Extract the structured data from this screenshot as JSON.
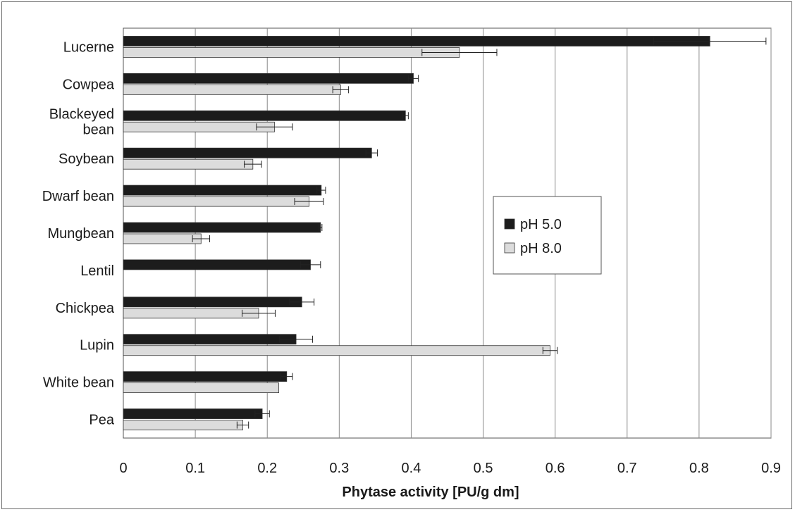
{
  "chart_data": {
    "type": "bar",
    "orientation": "horizontal",
    "title": "",
    "xlabel": "Phytase activity [PU/g dm]",
    "ylabel": "",
    "xlim": [
      0,
      0.9
    ],
    "x_ticks": [
      "0",
      "0.1",
      "0.2",
      "0.3",
      "0.4",
      "0.5",
      "0.6",
      "0.7",
      "0.8",
      "0.9"
    ],
    "grid": "vertical",
    "legend_position": "right",
    "categories": [
      [
        "Lucerne"
      ],
      [
        "Cowpea"
      ],
      [
        "Blackeyed",
        "bean"
      ],
      [
        "Soybean"
      ],
      [
        "Dwarf bean"
      ],
      [
        "Mungbean"
      ],
      [
        "Lentil"
      ],
      [
        "Chickpea"
      ],
      [
        "Lupin"
      ],
      [
        "White bean"
      ],
      [
        "Pea"
      ]
    ],
    "series": [
      {
        "name": "pH 5.0",
        "color": "#1c1c1c",
        "values": [
          0.815,
          0.403,
          0.392,
          0.345,
          0.275,
          0.274,
          0.26,
          0.248,
          0.24,
          0.227,
          0.193
        ],
        "errors": [
          0.078,
          0.007,
          0.004,
          0.008,
          0.006,
          0.002,
          0.014,
          0.017,
          0.023,
          0.008,
          0.01
        ]
      },
      {
        "name": "pH 8.0",
        "color": "#dcdcdc",
        "values": [
          0.467,
          0.302,
          0.21,
          0.18,
          0.258,
          0.108,
          0.0,
          0.188,
          0.593,
          0.216,
          0.166
        ],
        "errors": [
          0.052,
          0.011,
          0.025,
          0.012,
          0.02,
          0.012,
          0.0,
          0.023,
          0.01,
          0.0,
          0.008
        ]
      }
    ]
  }
}
